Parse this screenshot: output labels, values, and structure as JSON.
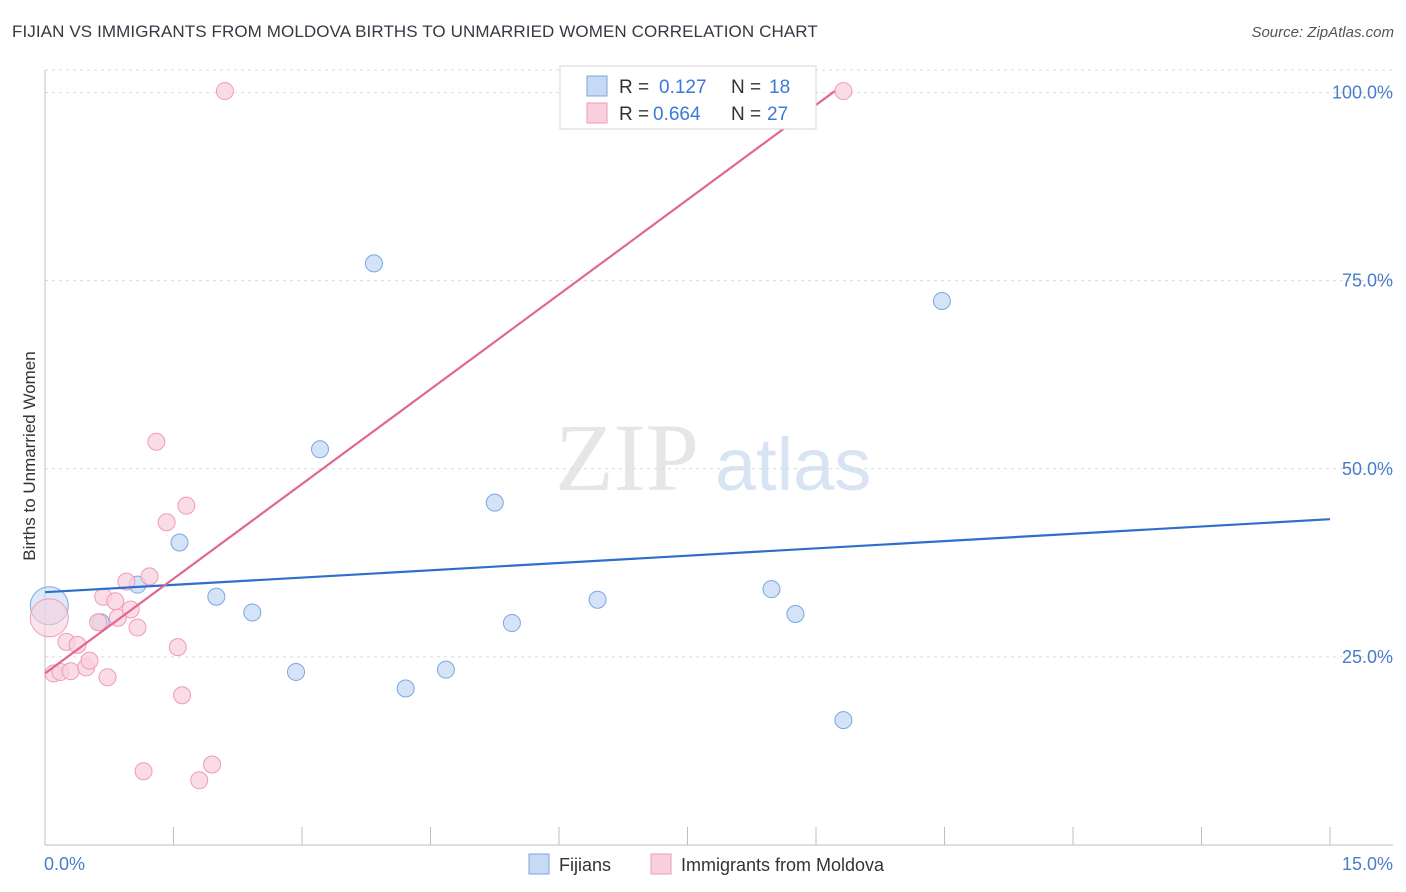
{
  "chart_data": {
    "type": "scatter",
    "title": "FIJIAN VS IMMIGRANTS FROM MOLDOVA BIRTHS TO UNMARRIED WOMEN CORRELATION CHART",
    "source": "Source: ZipAtlas.com",
    "xlabel": "",
    "ylabel": "Births to Unmarried Women",
    "xlim": [
      0,
      15
    ],
    "ylim": [
      0,
      103
    ],
    "x_tick_labels": [
      "0.0%",
      "15.0%"
    ],
    "y_ticks": [
      25,
      50,
      75,
      100
    ],
    "y_tick_labels": [
      "25.0%",
      "50.0%",
      "75.0%",
      "100.0%"
    ],
    "watermark": "ZIPatlas",
    "legend": {
      "entries": [
        {
          "r_label": "R =",
          "r_value": "0.127",
          "n_label": "N =",
          "n_value": "18"
        },
        {
          "r_label": "R =",
          "r_value": "0.664",
          "n_label": "N =",
          "n_value": "27"
        }
      ]
    },
    "series": [
      {
        "name": "Fijians",
        "color": "#7aa7e0",
        "fill": "#c6daf5",
        "trend_color": "#2f6fcb",
        "trend": {
          "x": [
            0.0,
            15.0
          ],
          "y": [
            33.6,
            43.3
          ]
        },
        "points": [
          {
            "x": 0.05,
            "y": 31.8,
            "big": true
          },
          {
            "x": 0.65,
            "y": 29.6
          },
          {
            "x": 1.08,
            "y": 34.6
          },
          {
            "x": 1.57,
            "y": 40.2
          },
          {
            "x": 2.0,
            "y": 33.0
          },
          {
            "x": 2.42,
            "y": 30.9
          },
          {
            "x": 2.93,
            "y": 23.0
          },
          {
            "x": 3.21,
            "y": 52.6
          },
          {
            "x": 3.84,
            "y": 77.3
          },
          {
            "x": 4.21,
            "y": 20.8
          },
          {
            "x": 4.68,
            "y": 23.3
          },
          {
            "x": 5.25,
            "y": 45.5
          },
          {
            "x": 5.45,
            "y": 29.5
          },
          {
            "x": 6.45,
            "y": 32.6
          },
          {
            "x": 8.48,
            "y": 34.0
          },
          {
            "x": 8.76,
            "y": 30.7
          },
          {
            "x": 9.32,
            "y": 16.6
          },
          {
            "x": 10.47,
            "y": 72.3
          }
        ]
      },
      {
        "name": "Immigrants from Moldova",
        "color": "#f19bb5",
        "fill": "#f8d0dd",
        "trend_color": "#e0688f",
        "trend": {
          "x": [
            0.0,
            9.22
          ],
          "y": [
            22.8,
            100.2
          ]
        },
        "points": [
          {
            "x": 0.05,
            "y": 30.2,
            "big": true
          },
          {
            "x": 0.1,
            "y": 22.8
          },
          {
            "x": 0.18,
            "y": 23.0
          },
          {
            "x": 0.25,
            "y": 27.0
          },
          {
            "x": 0.3,
            "y": 23.1
          },
          {
            "x": 0.38,
            "y": 26.6
          },
          {
            "x": 0.48,
            "y": 23.6
          },
          {
            "x": 0.52,
            "y": 24.5
          },
          {
            "x": 0.62,
            "y": 29.6
          },
          {
            "x": 0.68,
            "y": 33.0
          },
          {
            "x": 0.73,
            "y": 22.3
          },
          {
            "x": 0.82,
            "y": 32.4
          },
          {
            "x": 0.85,
            "y": 30.2
          },
          {
            "x": 0.95,
            "y": 35.0
          },
          {
            "x": 1.0,
            "y": 31.3
          },
          {
            "x": 1.08,
            "y": 28.9
          },
          {
            "x": 1.15,
            "y": 9.8
          },
          {
            "x": 1.22,
            "y": 35.7
          },
          {
            "x": 1.3,
            "y": 53.6
          },
          {
            "x": 1.42,
            "y": 42.9
          },
          {
            "x": 1.55,
            "y": 26.3
          },
          {
            "x": 1.6,
            "y": 19.9
          },
          {
            "x": 1.65,
            "y": 45.1
          },
          {
            "x": 1.8,
            "y": 8.6
          },
          {
            "x": 1.95,
            "y": 10.7
          },
          {
            "x": 2.1,
            "y": 100.2
          },
          {
            "x": 9.32,
            "y": 100.2
          }
        ]
      }
    ]
  }
}
